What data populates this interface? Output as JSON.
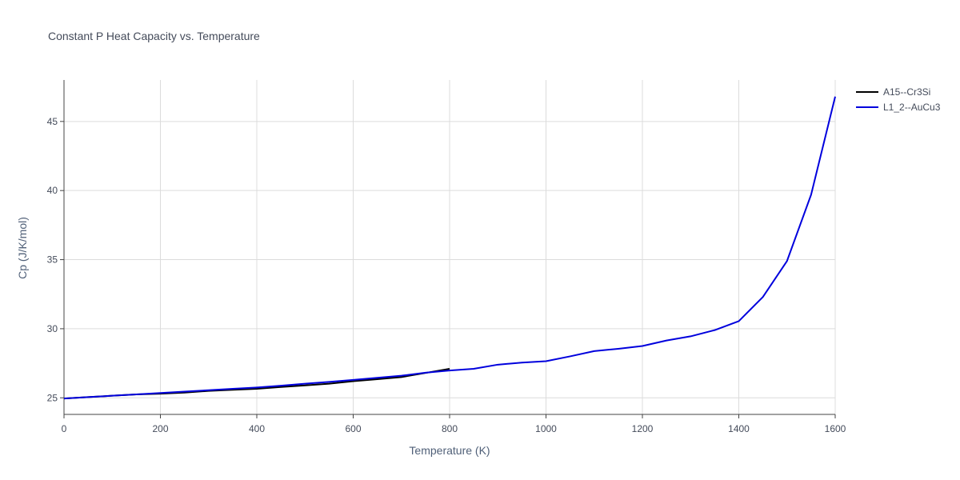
{
  "chart_data": {
    "type": "line",
    "title": "Constant P Heat Capacity vs. Temperature",
    "xlabel": "Temperature (K)",
    "ylabel": "Cp (J/K/mol)",
    "xlim": [
      0,
      1600
    ],
    "ylim": [
      23.8,
      48
    ],
    "xticks": [
      0,
      200,
      400,
      600,
      800,
      1000,
      1200,
      1400,
      1600
    ],
    "yticks": [
      25,
      30,
      35,
      40,
      45
    ],
    "grid": true,
    "legend_position": "top-right",
    "series": [
      {
        "name": "A15--Cr3Si",
        "color": "#000000",
        "x": [
          0,
          50,
          100,
          150,
          200,
          250,
          300,
          350,
          400,
          450,
          500,
          550,
          600,
          650,
          700,
          750,
          800
        ],
        "y": [
          24.95,
          25.05,
          25.15,
          25.25,
          25.3,
          25.38,
          25.5,
          25.58,
          25.65,
          25.78,
          25.9,
          26.02,
          26.2,
          26.35,
          26.5,
          26.8,
          27.1
        ]
      },
      {
        "name": "L1_2--AuCu3",
        "color": "#0000dd",
        "x": [
          0,
          50,
          100,
          150,
          200,
          250,
          300,
          350,
          400,
          450,
          500,
          550,
          600,
          650,
          700,
          750,
          800,
          850,
          900,
          950,
          1000,
          1050,
          1100,
          1150,
          1200,
          1250,
          1300,
          1350,
          1400,
          1450,
          1500,
          1550,
          1600
        ],
        "y": [
          24.95,
          25.05,
          25.15,
          25.25,
          25.35,
          25.45,
          25.55,
          25.65,
          25.75,
          25.88,
          26.02,
          26.15,
          26.3,
          26.45,
          26.6,
          26.82,
          26.98,
          27.1,
          27.4,
          27.55,
          27.65,
          28.0,
          28.38,
          28.55,
          28.75,
          29.15,
          29.45,
          29.9,
          30.55,
          32.3,
          34.9,
          39.7,
          46.8
        ]
      }
    ]
  }
}
